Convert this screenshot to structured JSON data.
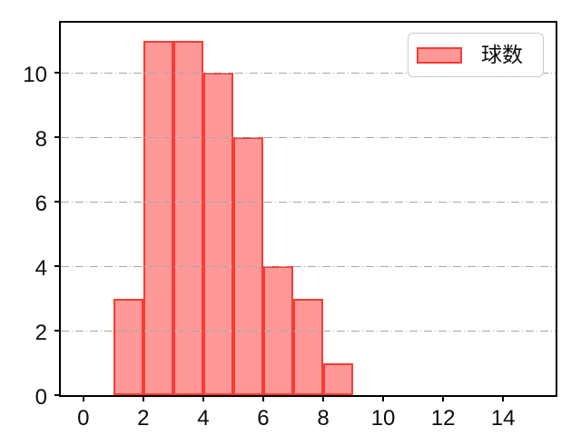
{
  "figure": {
    "background": "#ffffff"
  },
  "legend": {
    "label": "球数",
    "swatch_fill": "#ff9997",
    "swatch_edge": "#f93b33",
    "border_color": "#cccccc"
  },
  "chart_data": {
    "type": "bar",
    "subtype": "histogram",
    "title": "",
    "xlabel": "",
    "ylabel": "",
    "bin_edges": [
      1,
      2,
      3,
      4,
      5,
      6,
      7,
      8,
      9
    ],
    "counts": [
      3,
      11,
      11,
      10,
      8,
      4,
      3,
      1
    ],
    "series": [
      {
        "name": "球数",
        "values": [
          3,
          11,
          11,
          10,
          8,
          4,
          3,
          1
        ]
      }
    ],
    "xticks": [
      "0",
      "2",
      "4",
      "6",
      "8",
      "10",
      "12",
      "14"
    ],
    "xtick_values": [
      0,
      2,
      4,
      6,
      8,
      10,
      12,
      14
    ],
    "yticks": [
      "0",
      "2",
      "4",
      "6",
      "8",
      "10"
    ],
    "ytick_values": [
      0,
      2,
      4,
      6,
      8,
      10
    ],
    "xlim": [
      -0.75,
      15.75
    ],
    "ylim": [
      0,
      11.55
    ],
    "grid": "horizontal-dashdot",
    "grid_color": "#a7a7a7",
    "legend_position": "upper-right",
    "bar_fill": "#ff9997",
    "bar_edge": "#f93b33",
    "spine_color": "#000000",
    "tick_label_color": "#0d0d0d"
  }
}
